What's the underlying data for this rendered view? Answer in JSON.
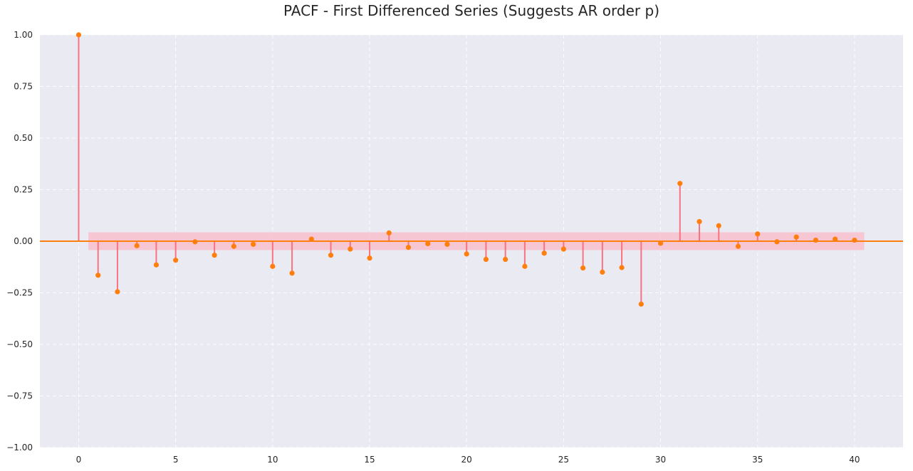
{
  "chart_data": {
    "type": "stem",
    "title": "PACF - First Differenced Series (Suggests AR order p)",
    "xlabel": "",
    "ylabel": "",
    "xlim": [
      -2,
      42.5
    ],
    "ylim": [
      -1.0,
      1.0
    ],
    "xticks": [
      0,
      5,
      10,
      15,
      20,
      25,
      30,
      35,
      40
    ],
    "xtick_labels": [
      "0",
      "5",
      "10",
      "15",
      "20",
      "25",
      "30",
      "35",
      "40"
    ],
    "yticks": [
      -1.0,
      -0.75,
      -0.5,
      -0.25,
      0.0,
      0.25,
      0.5,
      0.75,
      1.0
    ],
    "ytick_labels": [
      "−1.00",
      "−0.75",
      "−0.50",
      "−0.25",
      "0.00",
      "0.25",
      "0.50",
      "0.75",
      "1.00"
    ],
    "grid": true,
    "confidence_band": {
      "x_range": [
        0.5,
        40.5
      ],
      "lower": -0.043,
      "upper": 0.043
    },
    "lags": [
      0,
      1,
      2,
      3,
      4,
      5,
      6,
      7,
      8,
      9,
      10,
      11,
      12,
      13,
      14,
      15,
      16,
      17,
      18,
      19,
      20,
      21,
      22,
      23,
      24,
      25,
      26,
      27,
      28,
      29,
      30,
      31,
      32,
      33,
      34,
      35,
      36,
      37,
      38,
      39,
      40
    ],
    "values": [
      1.0,
      -0.165,
      -0.245,
      -0.022,
      -0.115,
      -0.092,
      -0.003,
      -0.068,
      -0.025,
      -0.015,
      -0.122,
      -0.155,
      0.01,
      -0.068,
      -0.038,
      -0.082,
      0.04,
      -0.03,
      -0.012,
      -0.015,
      -0.062,
      -0.088,
      -0.088,
      -0.122,
      -0.058,
      -0.038,
      -0.13,
      -0.15,
      -0.128,
      -0.305,
      -0.01,
      0.28,
      0.095,
      0.075,
      -0.025,
      0.035,
      -0.003,
      0.02,
      0.005,
      0.01,
      0.005
    ],
    "colors": {
      "background": "#eaeaf2",
      "grid": "#ffffff",
      "stem": "#f8737d",
      "marker": "#ff7f0e",
      "zero_line": "#ff7f0e",
      "band": "#f8bfcc"
    }
  }
}
